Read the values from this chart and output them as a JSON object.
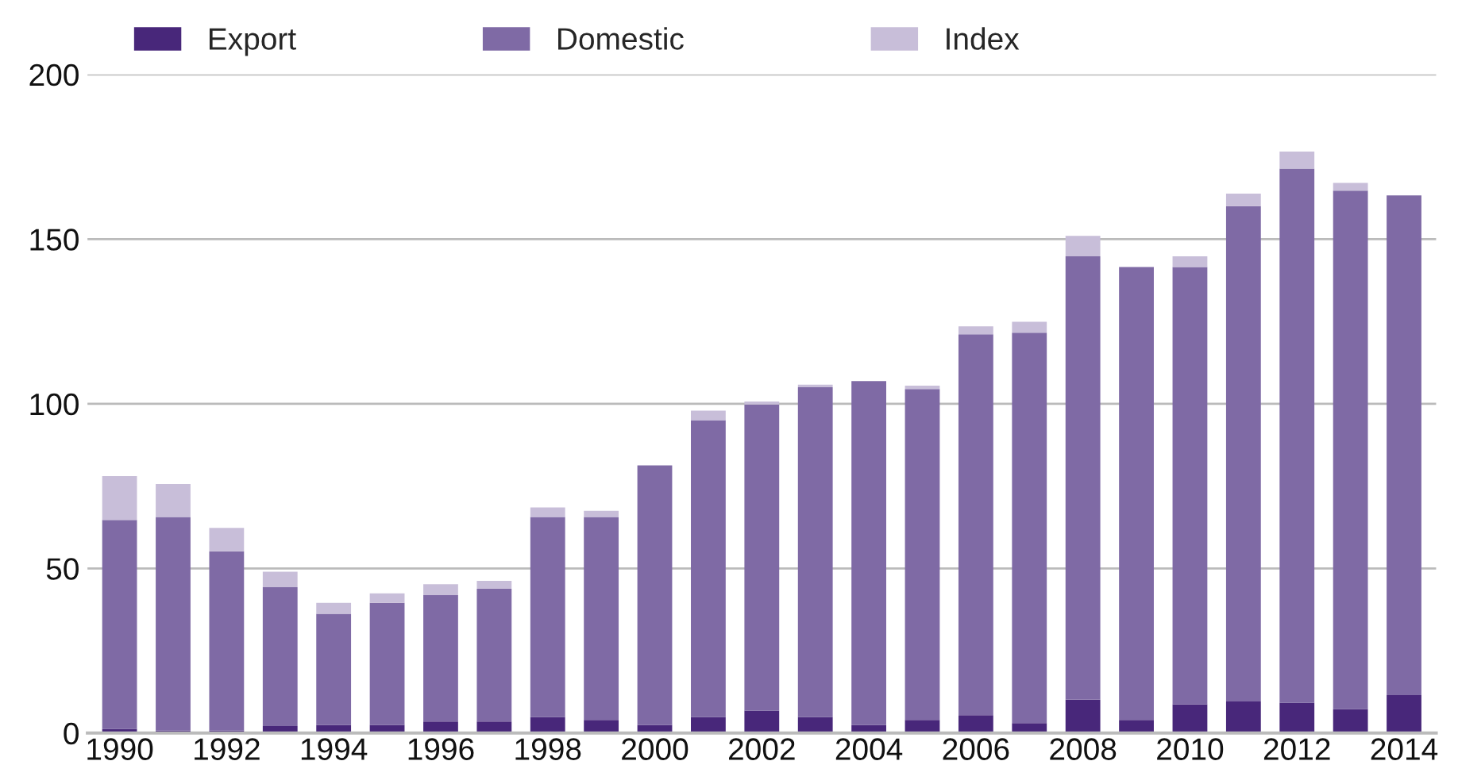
{
  "chart_data": {
    "type": "bar",
    "stacked": true,
    "categories": [
      "1990",
      null,
      "1992",
      null,
      "1994",
      null,
      "1996",
      null,
      "1998",
      null,
      "2000",
      null,
      "2002",
      null,
      "2004",
      null,
      "2006",
      null,
      "2008",
      null,
      "2010",
      null,
      "2012",
      null,
      "2014"
    ],
    "series": [
      {
        "name": "Export",
        "color": "#48277a",
        "values": [
          1.3,
          0.8,
          0.8,
          2.1,
          2.5,
          2.5,
          3.5,
          3.5,
          4.9,
          4.0,
          2.5,
          4.9,
          6.8,
          4.9,
          2.5,
          4.0,
          5.4,
          3.0,
          10.1,
          4.0,
          8.7,
          9.6,
          9.2,
          7.3,
          11.5
        ]
      },
      {
        "name": "Domestic",
        "color": "#7f6aa5",
        "values": [
          63.4,
          64.8,
          54.4,
          42.2,
          33.7,
          37.0,
          38.4,
          40.3,
          60.7,
          61.6,
          78.8,
          90.1,
          93.0,
          100.1,
          104.4,
          100.5,
          115.7,
          118.6,
          134.7,
          137.5,
          132.8,
          150.4,
          162.2,
          157.4,
          151.8
        ]
      },
      {
        "name": "Index",
        "color": "#c8bed9",
        "values": [
          13.3,
          10.0,
          7.1,
          4.7,
          3.3,
          2.9,
          3.3,
          2.4,
          2.9,
          1.9,
          0,
          2.9,
          0.9,
          0.8,
          0,
          1.0,
          2.4,
          3.3,
          6.2,
          0,
          3.3,
          3.8,
          5.2,
          2.4,
          0
        ]
      }
    ],
    "ylim": [
      0,
      200
    ],
    "yticks": [
      0,
      50,
      100,
      150,
      200
    ],
    "grid": "y",
    "legend": "top"
  }
}
